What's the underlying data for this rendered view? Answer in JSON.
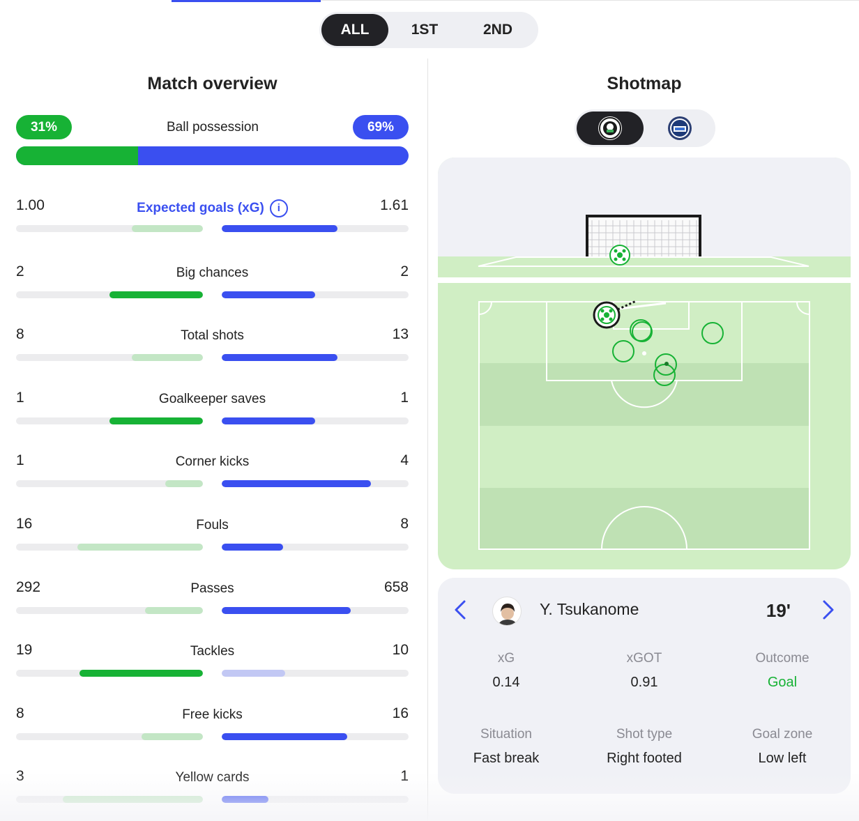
{
  "period_tabs": [
    {
      "label": "ALL",
      "active": true
    },
    {
      "label": "1ST",
      "active": false
    },
    {
      "label": "2ND",
      "active": false
    }
  ],
  "colors": {
    "home": "#17b235",
    "home_light": "#c3e6c5",
    "away": "#3a4ff0",
    "away_light": "#c2c8f4",
    "track": "#ececee"
  },
  "overview": {
    "title": "Match overview",
    "possession": {
      "label": "Ball possession",
      "home": "31%",
      "away": "69%",
      "home_share": 0.31
    },
    "stats": [
      {
        "name": "Expected goals (xG)",
        "home": "1.00",
        "away": "1.61",
        "home_fill": 0.38,
        "away_fill": 0.62,
        "home_strong": false,
        "away_strong": true,
        "away_light": false,
        "is_link": true
      },
      {
        "name": "Big chances",
        "home": "2",
        "away": "2",
        "home_fill": 0.5,
        "away_fill": 0.5,
        "home_strong": true,
        "away_strong": true,
        "away_light": false,
        "is_link": false
      },
      {
        "name": "Total shots",
        "home": "8",
        "away": "13",
        "home_fill": 0.38,
        "away_fill": 0.62,
        "home_strong": false,
        "away_strong": true,
        "away_light": false,
        "is_link": false
      },
      {
        "name": "Goalkeeper saves",
        "home": "1",
        "away": "1",
        "home_fill": 0.5,
        "away_fill": 0.5,
        "home_strong": true,
        "away_strong": true,
        "away_light": false,
        "is_link": false
      },
      {
        "name": "Corner kicks",
        "home": "1",
        "away": "4",
        "home_fill": 0.2,
        "away_fill": 0.8,
        "home_strong": false,
        "away_strong": true,
        "away_light": false,
        "is_link": false
      },
      {
        "name": "Fouls",
        "home": "16",
        "away": "8",
        "home_fill": 0.67,
        "away_fill": 0.33,
        "home_strong": false,
        "away_strong": true,
        "away_light": false,
        "is_link": false
      },
      {
        "name": "Passes",
        "home": "292",
        "away": "658",
        "home_fill": 0.31,
        "away_fill": 0.69,
        "home_strong": false,
        "away_strong": true,
        "away_light": false,
        "is_link": false
      },
      {
        "name": "Tackles",
        "home": "19",
        "away": "10",
        "home_fill": 0.66,
        "away_fill": 0.34,
        "home_strong": true,
        "away_strong": false,
        "away_light": true,
        "is_link": false
      },
      {
        "name": "Free kicks",
        "home": "8",
        "away": "16",
        "home_fill": 0.33,
        "away_fill": 0.67,
        "home_strong": false,
        "away_strong": true,
        "away_light": false,
        "is_link": false
      },
      {
        "name": "Yellow cards",
        "home": "3",
        "away": "1",
        "home_fill": 0.75,
        "away_fill": 0.25,
        "home_strong": false,
        "away_strong": true,
        "away_light": false,
        "is_link": false
      }
    ]
  },
  "shotmap": {
    "title": "Shotmap",
    "team_tabs": [
      {
        "crest": "home-team-crest",
        "active": true
      },
      {
        "crest": "away-team-crest",
        "active": false
      }
    ],
    "selected_shot": {
      "player": "Y. Tsukanome",
      "minute": "19'",
      "details": [
        {
          "label": "xG",
          "value": "0.14"
        },
        {
          "label": "xGOT",
          "value": "0.91"
        },
        {
          "label": "Outcome",
          "value": "Goal"
        },
        {
          "label": "Situation",
          "value": "Fast break"
        },
        {
          "label": "Shot type",
          "value": "Right footed"
        },
        {
          "label": "Goal zone",
          "value": "Low left"
        }
      ]
    }
  }
}
